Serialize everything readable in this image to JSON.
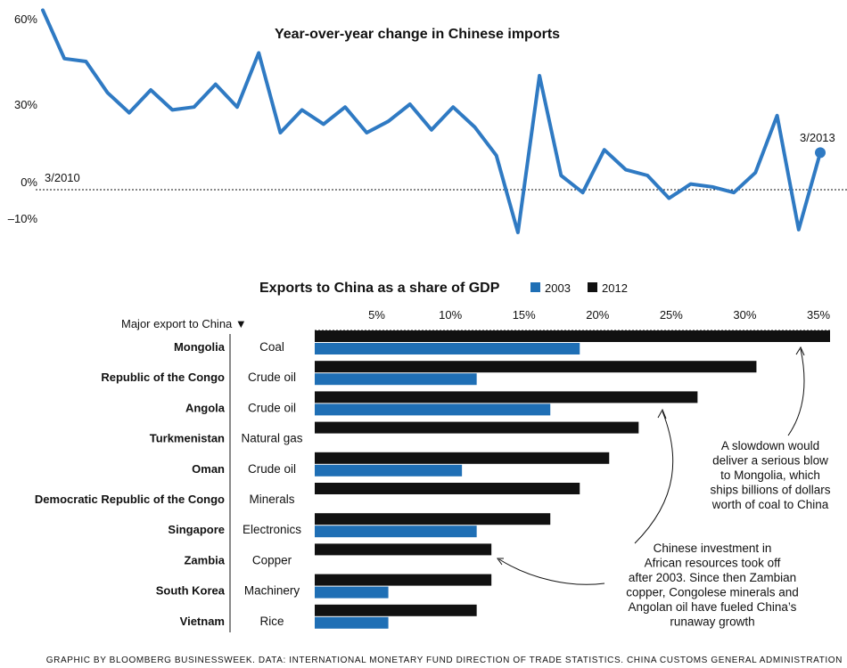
{
  "colors": {
    "blue": "#1f6fb5",
    "black": "#111111",
    "line": "#2f7ac3"
  },
  "chart_data": [
    {
      "type": "line",
      "title": "Year-over-year change in Chinese imports",
      "ytick_labels": [
        "60%",
        "30%",
        "0%",
        "–10%"
      ],
      "yticks": [
        60,
        30,
        0,
        -10
      ],
      "ylim": [
        -17,
        64
      ],
      "start_label": "3/2010",
      "end_label": "3/2013",
      "values": [
        63,
        46,
        45,
        34,
        27,
        35,
        28,
        29,
        37,
        29,
        48,
        20,
        28,
        23,
        29,
        20,
        24,
        30,
        21,
        29,
        22,
        12,
        -15,
        40,
        5,
        -1,
        14,
        7,
        5,
        -3,
        2,
        1,
        -1,
        6,
        26,
        -14,
        13
      ]
    },
    {
      "type": "bar",
      "title": "Exports to China as a share of GDP",
      "legend": [
        "2003",
        "2012"
      ],
      "column_header": "Major export to China ▼",
      "xtick_labels": [
        "5%",
        "10%",
        "15%",
        "20%",
        "25%",
        "30%",
        "35%"
      ],
      "xticks": [
        5,
        10,
        15,
        20,
        25,
        30,
        35
      ],
      "xlim": [
        0,
        35
      ],
      "rows": [
        {
          "country": "Mongolia",
          "export": "Coal",
          "v2012": 35,
          "v2003": 18
        },
        {
          "country": "Republic of the Congo",
          "export": "Crude oil",
          "v2012": 30,
          "v2003": 11
        },
        {
          "country": "Angola",
          "export": "Crude oil",
          "v2012": 26,
          "v2003": 16
        },
        {
          "country": "Turkmenistan",
          "export": "Natural gas",
          "v2012": 22,
          "v2003": null
        },
        {
          "country": "Oman",
          "export": "Crude oil",
          "v2012": 20,
          "v2003": 10
        },
        {
          "country": "Democratic Republic of the Congo",
          "export": "Minerals",
          "v2012": 18,
          "v2003": null
        },
        {
          "country": "Singapore",
          "export": "Electronics",
          "v2012": 16,
          "v2003": 11
        },
        {
          "country": "Zambia",
          "export": "Copper",
          "v2012": 12,
          "v2003": null
        },
        {
          "country": "South Korea",
          "export": "Machinery",
          "v2012": 12,
          "v2003": 5
        },
        {
          "country": "Vietnam",
          "export": "Rice",
          "v2012": 11,
          "v2003": 5
        }
      ],
      "annotations": [
        {
          "lines": [
            "A slowdown would",
            "deliver a serious blow",
            "to Mongolia, which",
            "ships billions of dollars",
            "worth of coal to China"
          ]
        },
        {
          "lines": [
            "Chinese investment in",
            "African resources took off",
            "after 2003. Since then Zambian",
            "copper, Congolese minerals and",
            "Angolan oil have fueled China’s",
            "runaway growth"
          ]
        }
      ]
    }
  ],
  "source": "GRAPHIC BY BLOOMBERG BUSINESSWEEK. DATA: INTERNATIONAL MONETARY FUND DIRECTION OF TRADE STATISTICS. CHINA CUSTOMS GENERAL ADMINISTRATION"
}
